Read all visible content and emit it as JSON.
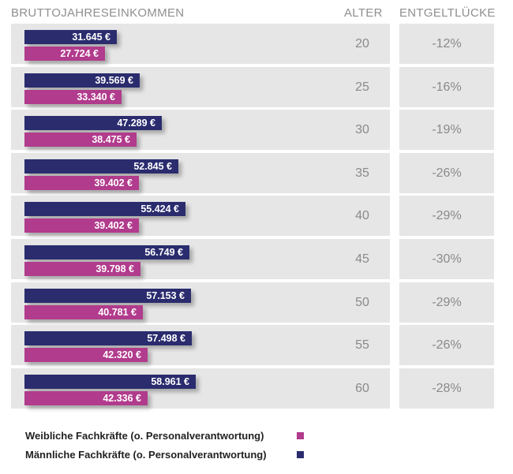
{
  "headers": {
    "income": "BRUTTOJAHRESEINKOMMEN",
    "age": "ALTER",
    "gap": "ENTGELTLÜCKE"
  },
  "colors": {
    "male": "#2a2c6e",
    "female": "#b13b8c",
    "row_bg": "#e6e6e6"
  },
  "legend": {
    "female": "Weibliche Fachkräfte (o. Personalverantwortung)",
    "male": "Männliche Fachkräfte (o. Personalverantwortung)"
  },
  "chart_data": {
    "type": "bar",
    "title": "",
    "xlabel": "BRUTTOJAHRESEINKOMMEN",
    "ylabel": "ALTER",
    "xlim": [
      0,
      60000
    ],
    "categories": [
      "20",
      "25",
      "30",
      "35",
      "40",
      "45",
      "50",
      "55",
      "60"
    ],
    "series": [
      {
        "name": "Männliche Fachkräfte (o. Personalverantwortung)",
        "key": "male",
        "values": [
          31645,
          39569,
          47289,
          52845,
          55424,
          56749,
          57153,
          57498,
          58961
        ],
        "labels": [
          "31.645 €",
          "39.569 €",
          "47.289 €",
          "52.845 €",
          "55.424 €",
          "56.749 €",
          "57.153 €",
          "57.498 €",
          "58.961 €"
        ]
      },
      {
        "name": "Weibliche Fachkräfte (o. Personalverantwortung)",
        "key": "female",
        "values": [
          27724,
          33340,
          38475,
          39402,
          39402,
          39798,
          40781,
          42320,
          42336
        ],
        "labels": [
          "27.724 €",
          "33.340 €",
          "38.475 €",
          "39.402 €",
          "39.402 €",
          "39.798 €",
          "40.781 €",
          "42.320 €",
          "42.336 €"
        ]
      }
    ],
    "gap_labels": [
      "-12%",
      "-16%",
      "-19%",
      "-26%",
      "-29%",
      "-30%",
      "-29%",
      "-26%",
      "-28%"
    ]
  }
}
